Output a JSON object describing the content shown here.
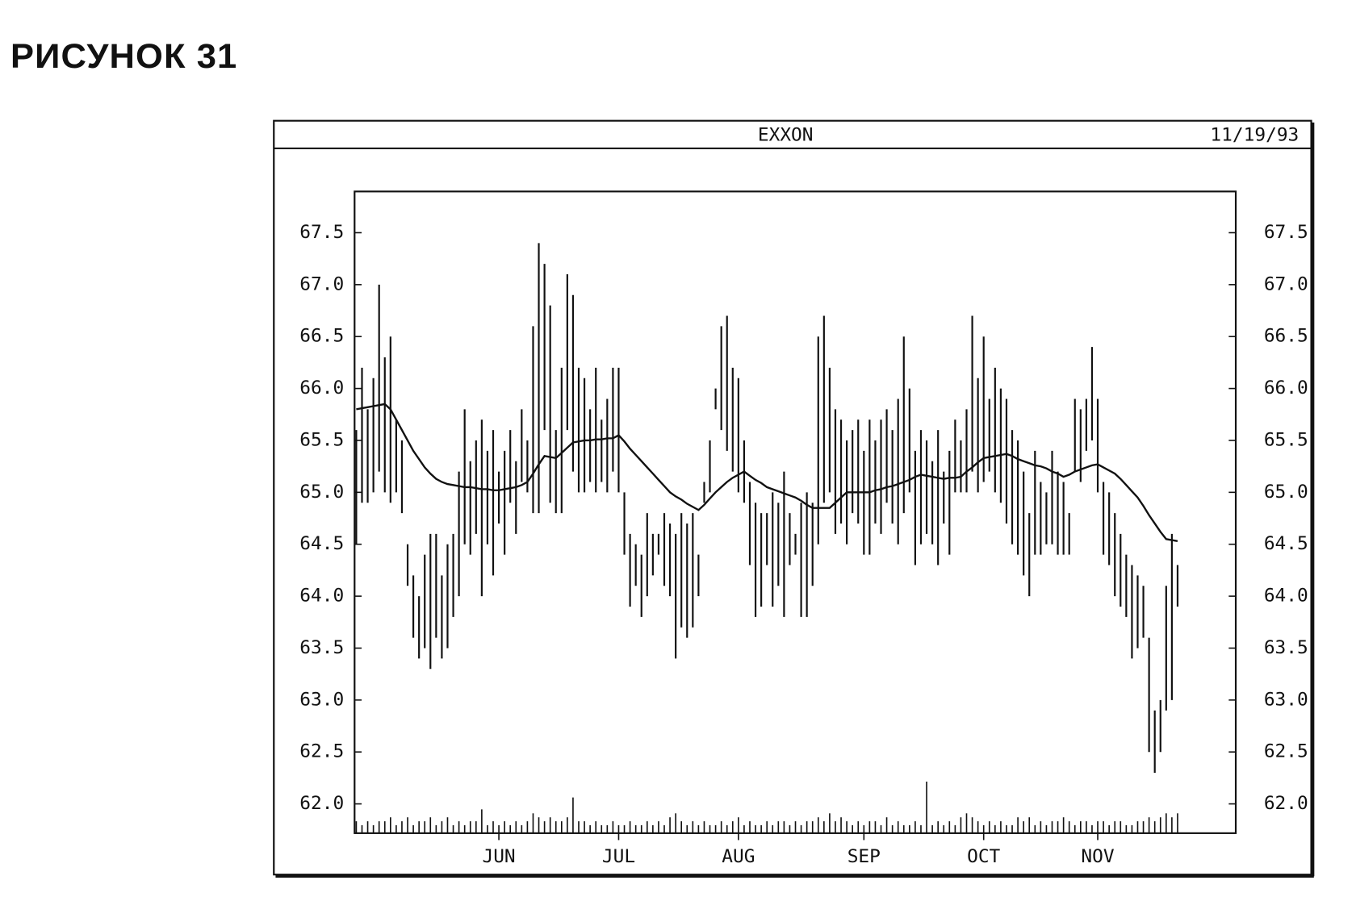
{
  "figure_label": "РИСУНОК 31",
  "chart_data": {
    "type": "hlc",
    "title": "EXXON",
    "date": "11/19/93",
    "categories": [
      null,
      null,
      null,
      null,
      null,
      null,
      null,
      null,
      null,
      null,
      null,
      null,
      null,
      null,
      null,
      null,
      null,
      null,
      null,
      null,
      null,
      null,
      null,
      null,
      null,
      null,
      null,
      null,
      null,
      null,
      null,
      null,
      null,
      null,
      null,
      null,
      null,
      null,
      null,
      null,
      null,
      null,
      null,
      null,
      null,
      null,
      null,
      null,
      null,
      null,
      null,
      null,
      null,
      null,
      null,
      null,
      null,
      null,
      null,
      null,
      null,
      null,
      null,
      null,
      null,
      null,
      null,
      null,
      null,
      null,
      null,
      null,
      null,
      null,
      null,
      null,
      null,
      null,
      null,
      null,
      null,
      null,
      null,
      null,
      null,
      null,
      null,
      null,
      null,
      null,
      null,
      null,
      null,
      null,
      null,
      null,
      null,
      null,
      null,
      null,
      null,
      null,
      null,
      null,
      null,
      null,
      null,
      null,
      null,
      null,
      null,
      null,
      null,
      null,
      null,
      null,
      null,
      null,
      null,
      null,
      null,
      null,
      null,
      null,
      null,
      null,
      null,
      null,
      null,
      null,
      null,
      null,
      null,
      null,
      null,
      null,
      null,
      null,
      null,
      null,
      null,
      null,
      null,
      null,
      null
    ],
    "high": [
      65.6,
      66.2,
      65.8,
      66.1,
      67.0,
      66.3,
      66.5,
      65.7,
      65.5,
      64.5,
      64.2,
      64.0,
      64.4,
      64.6,
      64.6,
      64.2,
      64.5,
      64.6,
      65.2,
      65.8,
      65.3,
      65.5,
      65.7,
      65.4,
      65.6,
      65.2,
      65.4,
      65.6,
      65.3,
      65.8,
      65.5,
      66.6,
      67.4,
      67.2,
      66.8,
      65.6,
      66.2,
      67.1,
      66.9,
      66.2,
      66.1,
      65.8,
      66.2,
      65.7,
      65.9,
      66.2,
      66.2,
      65.0,
      64.6,
      64.5,
      64.4,
      64.8,
      64.6,
      64.6,
      64.8,
      64.7,
      64.6,
      64.8,
      64.7,
      64.8,
      64.4,
      65.1,
      65.5,
      66.0,
      66.6,
      66.7,
      66.2,
      66.1,
      65.5,
      65.1,
      64.9,
      64.8,
      64.8,
      65.0,
      64.9,
      65.2,
      64.8,
      64.6,
      64.9,
      65.0,
      64.9,
      66.5,
      66.7,
      66.2,
      65.8,
      65.7,
      65.5,
      65.6,
      65.7,
      65.4,
      65.7,
      65.5,
      65.7,
      65.8,
      65.6,
      65.9,
      66.5,
      66.0,
      65.4,
      65.6,
      65.5,
      65.3,
      65.6,
      65.2,
      65.4,
      65.7,
      65.5,
      65.8,
      66.7,
      66.1,
      66.5,
      65.9,
      66.2,
      66.0,
      65.9,
      65.6,
      65.5,
      65.2,
      64.8,
      65.4,
      65.1,
      65.0,
      65.4,
      65.2,
      65.1,
      64.8,
      65.9,
      65.8,
      65.9,
      66.4,
      65.9,
      65.1,
      65.0,
      64.8,
      64.6,
      64.4,
      64.3,
      64.2,
      64.1,
      63.6,
      62.9,
      63.0,
      64.1,
      64.6,
      64.3
    ],
    "low": [
      64.5,
      64.9,
      64.9,
      65.0,
      65.2,
      65.0,
      64.9,
      65.0,
      64.8,
      64.1,
      63.6,
      63.4,
      63.5,
      63.3,
      63.6,
      63.4,
      63.5,
      63.8,
      64.0,
      64.5,
      64.4,
      64.6,
      64.0,
      64.5,
      64.2,
      64.7,
      64.4,
      64.9,
      64.6,
      65.1,
      65.0,
      64.8,
      64.8,
      65.6,
      64.9,
      64.8,
      64.8,
      65.6,
      65.2,
      65.0,
      65.0,
      65.1,
      65.0,
      65.1,
      65.0,
      65.2,
      65.0,
      64.4,
      63.9,
      64.1,
      63.8,
      64.0,
      64.2,
      64.4,
      64.1,
      64.0,
      63.4,
      63.7,
      63.6,
      63.7,
      64.0,
      64.9,
      65.0,
      65.8,
      65.6,
      65.4,
      65.2,
      65.0,
      64.9,
      64.3,
      63.8,
      63.9,
      64.3,
      63.9,
      64.1,
      63.8,
      64.3,
      64.4,
      63.8,
      63.8,
      64.1,
      64.5,
      64.9,
      65.0,
      64.6,
      64.7,
      64.5,
      64.8,
      64.7,
      64.4,
      64.4,
      64.7,
      64.6,
      64.9,
      64.7,
      64.5,
      64.8,
      65.0,
      64.3,
      64.5,
      64.6,
      64.5,
      64.3,
      64.7,
      64.4,
      65.0,
      65.0,
      65.0,
      65.2,
      65.0,
      65.1,
      65.2,
      65.0,
      64.9,
      64.7,
      64.5,
      64.4,
      64.2,
      64.0,
      64.4,
      64.4,
      64.5,
      64.5,
      64.4,
      64.4,
      64.4,
      65.2,
      65.1,
      65.4,
      65.5,
      65.0,
      64.4,
      64.3,
      64.0,
      63.9,
      63.8,
      63.4,
      63.5,
      63.6,
      62.5,
      62.3,
      62.5,
      62.9,
      63.0,
      63.9
    ],
    "moving_average": [
      65.8,
      65.81,
      65.82,
      65.83,
      65.84,
      65.85,
      65.8,
      65.7,
      65.6,
      65.5,
      65.4,
      65.32,
      65.24,
      65.18,
      65.13,
      65.1,
      65.08,
      65.07,
      65.06,
      65.05,
      65.05,
      65.04,
      65.03,
      65.03,
      65.02,
      65.02,
      65.03,
      65.04,
      65.05,
      65.07,
      65.1,
      65.18,
      65.27,
      65.35,
      65.34,
      65.33,
      65.38,
      65.43,
      65.48,
      65.49,
      65.5,
      65.5,
      65.51,
      65.51,
      65.52,
      65.52,
      65.55,
      65.49,
      65.42,
      65.36,
      65.3,
      65.24,
      65.18,
      65.12,
      65.06,
      65.0,
      64.96,
      64.93,
      64.89,
      64.86,
      64.83,
      64.88,
      64.94,
      65.0,
      65.05,
      65.1,
      65.14,
      65.17,
      65.2,
      65.16,
      65.12,
      65.09,
      65.05,
      65.03,
      65.01,
      64.99,
      64.97,
      64.95,
      64.92,
      64.88,
      64.85,
      64.85,
      64.85,
      64.85,
      64.9,
      64.95,
      65.0,
      65.0,
      65.0,
      65.0,
      65.0,
      65.02,
      65.03,
      65.05,
      65.06,
      65.08,
      65.1,
      65.12,
      65.15,
      65.17,
      65.16,
      65.15,
      65.14,
      65.13,
      65.14,
      65.14,
      65.15,
      65.2,
      65.24,
      65.29,
      65.33,
      65.34,
      65.35,
      65.36,
      65.37,
      65.35,
      65.32,
      65.3,
      65.28,
      65.26,
      65.25,
      65.23,
      65.2,
      65.18,
      65.15,
      65.17,
      65.2,
      65.22,
      65.24,
      65.26,
      65.27,
      65.24,
      65.21,
      65.18,
      65.13,
      65.07,
      65.01,
      64.95,
      64.87,
      64.78,
      64.7,
      64.62,
      64.55,
      64.54,
      64.53
    ],
    "volume": [
      3,
      2,
      3,
      2,
      3,
      3,
      4,
      2,
      3,
      4,
      2,
      3,
      3,
      4,
      2,
      3,
      4,
      2,
      3,
      2,
      3,
      3,
      6,
      2,
      3,
      2,
      3,
      2,
      3,
      2,
      3,
      5,
      4,
      3,
      4,
      3,
      3,
      4,
      9,
      3,
      3,
      2,
      3,
      2,
      2,
      3,
      2,
      2,
      3,
      2,
      2,
      3,
      2,
      3,
      2,
      4,
      5,
      3,
      2,
      3,
      2,
      3,
      2,
      2,
      3,
      2,
      3,
      4,
      2,
      3,
      2,
      2,
      3,
      2,
      3,
      3,
      2,
      3,
      2,
      3,
      3,
      4,
      3,
      5,
      3,
      4,
      3,
      2,
      3,
      2,
      3,
      3,
      2,
      4,
      2,
      3,
      2,
      2,
      3,
      2,
      13,
      2,
      3,
      2,
      3,
      2,
      4,
      5,
      4,
      3,
      2,
      3,
      2,
      3,
      2,
      2,
      4,
      3,
      4,
      2,
      3,
      2,
      3,
      3,
      4,
      3,
      2,
      3,
      3,
      2,
      3,
      3,
      2,
      3,
      3,
      2,
      2,
      3,
      3,
      4,
      3,
      4,
      5,
      4,
      5
    ],
    "color": "#111111",
    "xlim": [
      -0.3,
      154.2
    ],
    "xticks": [
      {
        "value": 25,
        "label": "JUN"
      },
      {
        "value": 46,
        "label": "JUL"
      },
      {
        "value": 67,
        "label": "AUG"
      },
      {
        "value": 89,
        "label": "SEP"
      },
      {
        "value": 110,
        "label": "OCT"
      },
      {
        "value": 130,
        "label": "NOV"
      }
    ],
    "ylim": [
      61.718,
      67.897
    ],
    "yticks": [
      {
        "value": 62,
        "label": "62.0"
      },
      {
        "value": 62.5,
        "label": "62.5"
      },
      {
        "value": 63,
        "label": "63.0"
      },
      {
        "value": 63.5,
        "label": "63.5"
      },
      {
        "value": 64,
        "label": "64.0"
      },
      {
        "value": 64.5,
        "label": "64.5"
      },
      {
        "value": 65,
        "label": "65.0"
      },
      {
        "value": 65.5,
        "label": "65.5"
      },
      {
        "value": 66,
        "label": "66.0"
      },
      {
        "value": 66.5,
        "label": "66.5"
      },
      {
        "value": 67,
        "label": "67.0"
      },
      {
        "value": 67.5,
        "label": "67.5"
      }
    ]
  }
}
